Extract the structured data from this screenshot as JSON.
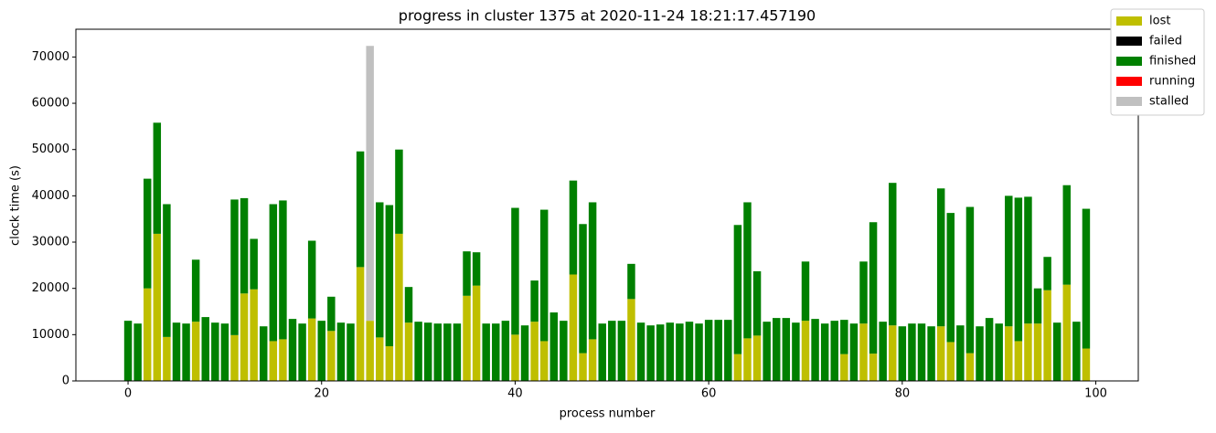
{
  "chart_data": {
    "type": "bar",
    "stacked": true,
    "title": "progress in cluster 1375 at 2020-11-24 18:21:17.457190",
    "xlabel": "process number",
    "ylabel": "clock time (s)",
    "x": [
      0,
      1,
      2,
      3,
      4,
      5,
      6,
      7,
      8,
      9,
      10,
      11,
      12,
      13,
      14,
      15,
      16,
      17,
      18,
      19,
      20,
      21,
      22,
      23,
      24,
      25,
      26,
      27,
      28,
      29,
      30,
      31,
      32,
      33,
      34,
      35,
      36,
      37,
      38,
      39,
      40,
      41,
      42,
      43,
      44,
      45,
      46,
      47,
      48,
      49,
      50,
      51,
      52,
      53,
      54,
      55,
      56,
      57,
      58,
      59,
      60,
      61,
      62,
      63,
      64,
      65,
      66,
      67,
      68,
      69,
      70,
      71,
      72,
      73,
      74,
      75,
      76,
      77,
      78,
      79,
      80,
      81,
      82,
      83,
      84,
      85,
      86,
      87,
      88,
      89,
      90,
      91,
      92,
      93,
      94,
      95,
      96,
      97,
      98,
      99
    ],
    "xlim": [
      -5.39,
      104.39
    ],
    "xticks": [
      0,
      20,
      40,
      60,
      80,
      100
    ],
    "ylim": [
      0,
      76000
    ],
    "yticks": [
      0,
      10000,
      20000,
      30000,
      40000,
      50000,
      60000,
      70000
    ],
    "legend": "upper right",
    "series": [
      {
        "name": "lost",
        "color": "#bfbf00",
        "values": [
          0,
          0,
          20000,
          31800,
          9500,
          0,
          0,
          12800,
          0,
          0,
          0,
          9900,
          18900,
          19800,
          0,
          8600,
          9000,
          0,
          0,
          13500,
          0,
          10800,
          0,
          0,
          24600,
          13000,
          9400,
          7500,
          31800,
          12600,
          0,
          0,
          0,
          0,
          0,
          18400,
          20600,
          0,
          0,
          0,
          10000,
          0,
          12800,
          8600,
          0,
          0,
          23000,
          6000,
          9000,
          0,
          0,
          0,
          17700,
          0,
          0,
          0,
          0,
          0,
          0,
          0,
          0,
          0,
          0,
          5800,
          9200,
          9800,
          0,
          0,
          0,
          0,
          13000,
          0,
          0,
          0,
          5800,
          0,
          12400,
          5900,
          0,
          12000,
          0,
          0,
          0,
          0,
          11800,
          8400,
          0,
          6000,
          0,
          0,
          0,
          11800,
          8600,
          12400,
          12400,
          19600,
          0,
          20800,
          0,
          7000
        ]
      },
      {
        "name": "failed",
        "color": "#000000",
        "values": [
          0,
          0,
          0,
          0,
          0,
          0,
          0,
          0,
          0,
          0,
          0,
          0,
          0,
          0,
          0,
          0,
          0,
          0,
          0,
          0,
          0,
          0,
          0,
          0,
          0,
          0,
          0,
          0,
          0,
          0,
          0,
          0,
          0,
          0,
          0,
          0,
          0,
          0,
          0,
          0,
          0,
          0,
          0,
          0,
          0,
          0,
          0,
          0,
          0,
          0,
          0,
          0,
          0,
          0,
          0,
          0,
          0,
          0,
          0,
          0,
          0,
          0,
          0,
          0,
          0,
          0,
          0,
          0,
          0,
          0,
          0,
          0,
          0,
          0,
          0,
          0,
          0,
          0,
          0,
          0,
          0,
          0,
          0,
          0,
          0,
          0,
          0,
          0,
          0,
          0,
          0,
          0,
          0,
          0,
          0,
          0,
          0,
          0,
          0,
          0
        ]
      },
      {
        "name": "finished",
        "color": "#008000",
        "values": [
          13000,
          12400,
          23700,
          24000,
          28700,
          12600,
          12400,
          13400,
          13800,
          12600,
          12400,
          29300,
          20600,
          10900,
          11800,
          29600,
          30000,
          13400,
          12400,
          16800,
          13000,
          7400,
          12600,
          12400,
          25000,
          0,
          29200,
          30500,
          18200,
          7700,
          12800,
          12600,
          12400,
          12400,
          12400,
          9600,
          7200,
          12400,
          12400,
          13000,
          27400,
          12000,
          8900,
          28400,
          14800,
          13000,
          20300,
          27900,
          29600,
          12400,
          13000,
          13000,
          7600,
          12600,
          12000,
          12200,
          12600,
          12400,
          12800,
          12400,
          13200,
          13200,
          13200,
          27900,
          29400,
          13900,
          12800,
          13600,
          13600,
          12600,
          12800,
          13400,
          12400,
          13000,
          7400,
          12400,
          13400,
          28400,
          12800,
          30800,
          11800,
          12400,
          12400,
          11800,
          29800,
          27900,
          12000,
          31600,
          11800,
          13600,
          12400,
          28200,
          31000,
          27400,
          7600,
          7200,
          12600,
          21500,
          12800,
          30200
        ]
      },
      {
        "name": "running",
        "color": "#ff0000",
        "values": [
          0,
          0,
          0,
          0,
          0,
          0,
          0,
          0,
          0,
          0,
          0,
          0,
          0,
          0,
          0,
          0,
          0,
          0,
          0,
          0,
          0,
          0,
          0,
          0,
          0,
          0,
          0,
          0,
          0,
          0,
          0,
          0,
          0,
          0,
          0,
          0,
          0,
          0,
          0,
          0,
          0,
          0,
          0,
          0,
          0,
          0,
          0,
          0,
          0,
          0,
          0,
          0,
          0,
          0,
          0,
          0,
          0,
          0,
          0,
          0,
          0,
          0,
          0,
          0,
          0,
          0,
          0,
          0,
          0,
          0,
          0,
          0,
          0,
          0,
          0,
          0,
          0,
          0,
          0,
          0,
          0,
          0,
          0,
          0,
          0,
          0,
          0,
          0,
          0,
          0,
          0,
          0,
          0,
          0,
          0,
          0,
          0,
          0,
          0,
          0
        ]
      },
      {
        "name": "stalled",
        "color": "#c0c0c0",
        "values": [
          0,
          0,
          0,
          0,
          0,
          0,
          0,
          0,
          0,
          0,
          0,
          0,
          0,
          0,
          0,
          0,
          0,
          0,
          0,
          0,
          0,
          0,
          0,
          0,
          0,
          59400,
          0,
          0,
          0,
          0,
          0,
          0,
          0,
          0,
          0,
          0,
          0,
          0,
          0,
          0,
          0,
          0,
          0,
          0,
          0,
          0,
          0,
          0,
          0,
          0,
          0,
          0,
          0,
          0,
          0,
          0,
          0,
          0,
          0,
          0,
          0,
          0,
          0,
          0,
          0,
          0,
          0,
          0,
          0,
          0,
          0,
          0,
          0,
          0,
          0,
          0,
          0,
          0,
          0,
          0,
          0,
          0,
          0,
          0,
          0,
          0,
          0,
          0,
          0,
          0,
          0,
          0,
          0,
          0,
          0,
          0,
          0,
          0,
          0,
          0
        ]
      }
    ]
  }
}
